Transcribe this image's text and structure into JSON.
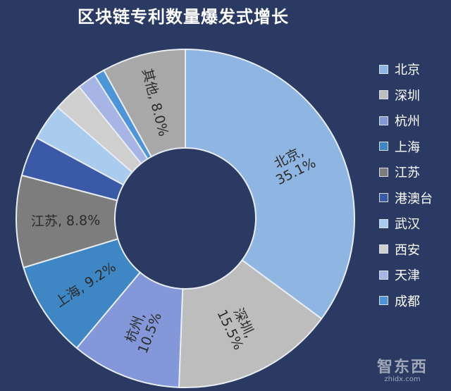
{
  "title": "区块链专利数量爆发式增长",
  "chart_data": {
    "type": "pie",
    "variant": "donut",
    "title": "区块链专利数量爆发式增长",
    "slices": [
      {
        "name": "北京",
        "value": 35.1,
        "label": "北京,\n35.1%",
        "color": "#8fb6e3"
      },
      {
        "name": "深圳",
        "value": 15.5,
        "label": "深圳,\n15.5%",
        "color": "#bdbdbd"
      },
      {
        "name": "杭州",
        "value": 10.5,
        "label": "杭州,\n10.5%",
        "color": "#8497d8"
      },
      {
        "name": "上海",
        "value": 9.2,
        "label": "上海, 9.2%",
        "color": "#3f86c4"
      },
      {
        "name": "江苏",
        "value": 8.8,
        "label": "江苏, 8.8%",
        "color": "#7d7d7d"
      },
      {
        "name": "港澳台",
        "value": 3.8,
        "label": "",
        "color": "#3a5aa8"
      },
      {
        "name": "武汉",
        "value": 3.5,
        "label": "",
        "color": "#a9cbee"
      },
      {
        "name": "西安",
        "value": 2.8,
        "label": "",
        "color": "#cfcfcf"
      },
      {
        "name": "天津",
        "value": 1.8,
        "label": "",
        "color": "#a7b5e6"
      },
      {
        "name": "成都",
        "value": 1.0,
        "label": "",
        "color": "#4d95d6"
      },
      {
        "name": "其他",
        "value": 8.0,
        "label": "其他, 8.0%",
        "color": "#a8a8a8"
      }
    ],
    "legend": {
      "placement": "right",
      "entries": [
        "北京",
        "深圳",
        "杭州",
        "上海",
        "江苏",
        "港澳台",
        "武汉",
        "西安",
        "天津",
        "成都"
      ]
    }
  },
  "watermark": {
    "logo": "智东西",
    "url": "zhidx.com"
  }
}
